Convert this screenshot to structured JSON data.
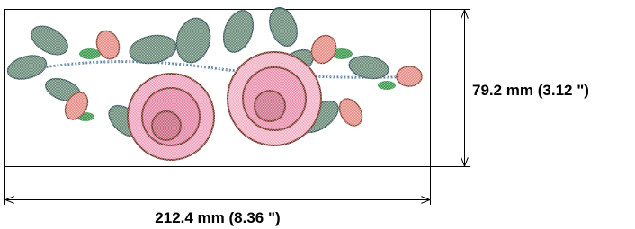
{
  "dimensions": {
    "height": "79.2 mm (3.12 \")",
    "width": "212.4 mm (8.36 \")"
  }
}
